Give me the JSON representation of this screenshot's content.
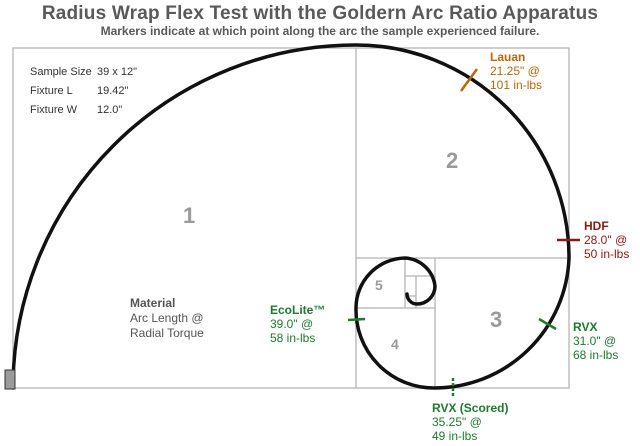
{
  "title": "Radius Wrap Flex Test with the Goldern Arc Ratio Apparatus",
  "subtitle": "Markers indicate at which point along the arc the sample experienced failure.",
  "specs": [
    {
      "label": "Sample Size",
      "value": "39 x 12\""
    },
    {
      "label": "Fixture L",
      "value": "19.42\""
    },
    {
      "label": "Fixture W",
      "value": "12.0\""
    }
  ],
  "sections": [
    "1",
    "2",
    "3",
    "4",
    "5"
  ],
  "legend": {
    "heading": "Material",
    "line1": "Arc Length @",
    "line2": "Radial Torque"
  },
  "colors": {
    "spiral": "#111111",
    "lauan": "#b8680c",
    "hdf": "#8b1a14",
    "green": "#1f7a2e",
    "grid": "#b5b5b5"
  },
  "materials": [
    {
      "name": "Lauan",
      "length": "21.25\" @",
      "torque": "101 in-lbs",
      "color": "#b8680c"
    },
    {
      "name": "HDF",
      "length": "28.0\" @",
      "torque": "50 in-lbs",
      "color": "#8b1a14"
    },
    {
      "name": "RVX",
      "length": "31.0\" @",
      "torque": "68 in-lbs",
      "color": "#1f7a2e"
    },
    {
      "name": "RVX (Scored)",
      "length": "35.25\" @",
      "torque": "49 in-lbs",
      "color": "#1f7a2e"
    },
    {
      "name": "EcoLite™",
      "length": "39.0\" @",
      "torque": "58 in-lbs",
      "color": "#1f7a2e"
    }
  ]
}
